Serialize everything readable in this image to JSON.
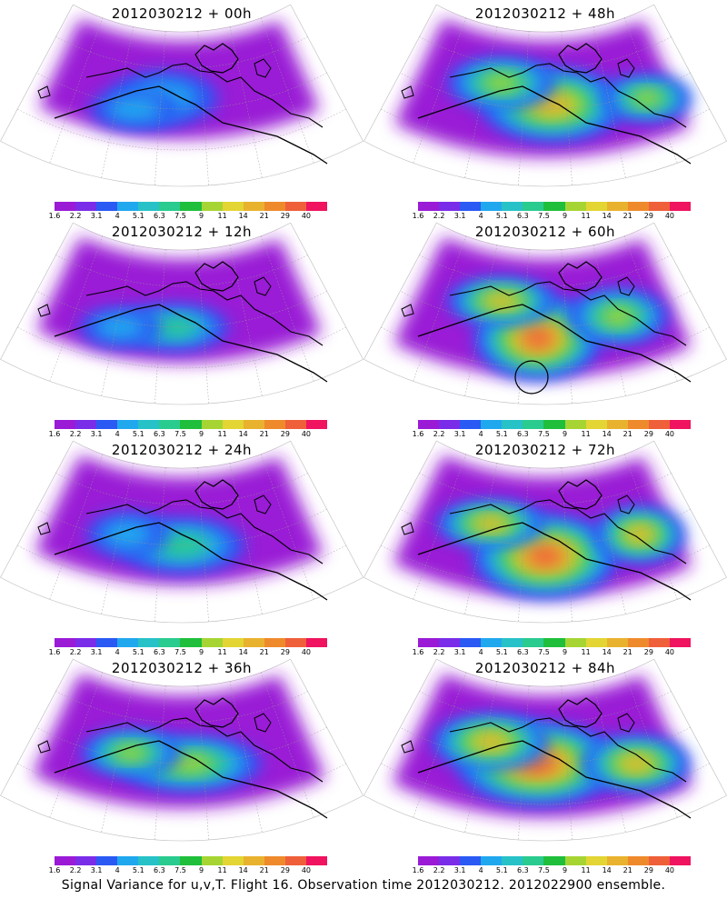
{
  "panels": [
    {
      "title": "2012030212 + 00h",
      "intensity": 0.2,
      "blobs": [
        [
          0.45,
          0.45,
          60,
          30,
          0.9
        ],
        [
          0.37,
          0.5,
          50,
          22,
          0.6
        ]
      ]
    },
    {
      "title": "2012030212 + 48h",
      "intensity": 0.7,
      "blobs": [
        [
          0.52,
          0.48,
          80,
          40,
          1.0
        ],
        [
          0.38,
          0.38,
          60,
          28,
          0.8
        ],
        [
          0.78,
          0.45,
          50,
          25,
          0.6
        ]
      ]
    },
    {
      "title": "2012030212 + 12h",
      "intensity": 0.35,
      "blobs": [
        [
          0.48,
          0.5,
          60,
          25,
          0.8
        ],
        [
          0.33,
          0.5,
          45,
          22,
          0.5
        ]
      ]
    },
    {
      "title": "2012030212 + 60h",
      "intensity": 0.75,
      "blobs": [
        [
          0.48,
          0.55,
          70,
          45,
          1.0
        ],
        [
          0.38,
          0.38,
          60,
          25,
          0.8
        ],
        [
          0.7,
          0.45,
          55,
          30,
          0.6
        ]
      ],
      "circle": true
    },
    {
      "title": "2012030212 + 24h",
      "intensity": 0.45,
      "blobs": [
        [
          0.5,
          0.5,
          70,
          30,
          0.85
        ],
        [
          0.35,
          0.45,
          45,
          25,
          0.55
        ]
      ]
    },
    {
      "title": "2012030212 + 72h",
      "intensity": 0.8,
      "blobs": [
        [
          0.5,
          0.55,
          80,
          45,
          1.0
        ],
        [
          0.35,
          0.4,
          60,
          25,
          0.8
        ],
        [
          0.76,
          0.45,
          50,
          30,
          0.75
        ]
      ]
    },
    {
      "title": "2012030212 + 36h",
      "intensity": 0.6,
      "blobs": [
        [
          0.52,
          0.5,
          80,
          30,
          0.9
        ],
        [
          0.36,
          0.45,
          55,
          25,
          0.7
        ]
      ]
    },
    {
      "title": "2012030212 + 84h",
      "intensity": 0.85,
      "blobs": [
        [
          0.48,
          0.5,
          90,
          45,
          1.0
        ],
        [
          0.35,
          0.4,
          65,
          30,
          0.85
        ],
        [
          0.75,
          0.5,
          60,
          30,
          0.8
        ]
      ]
    }
  ],
  "colorbar": {
    "colors": [
      "#9a1ad6",
      "#7a2de8",
      "#2a59f4",
      "#20a8ee",
      "#27c2c8",
      "#2acb8f",
      "#1fbf3c",
      "#a6d533",
      "#e3d533",
      "#e9b22e",
      "#ef8a2c",
      "#ef5f3a",
      "#f0135f"
    ],
    "labels": [
      "1.6",
      "2.2",
      "3.1",
      "4",
      "5.1",
      "6.3",
      "7.5",
      "9",
      "11",
      "14",
      "21",
      "29",
      "40"
    ]
  },
  "caption": "Signal Variance for u,v,T. Flight 16. Observation time 2012030212. 2012022900 ensemble."
}
